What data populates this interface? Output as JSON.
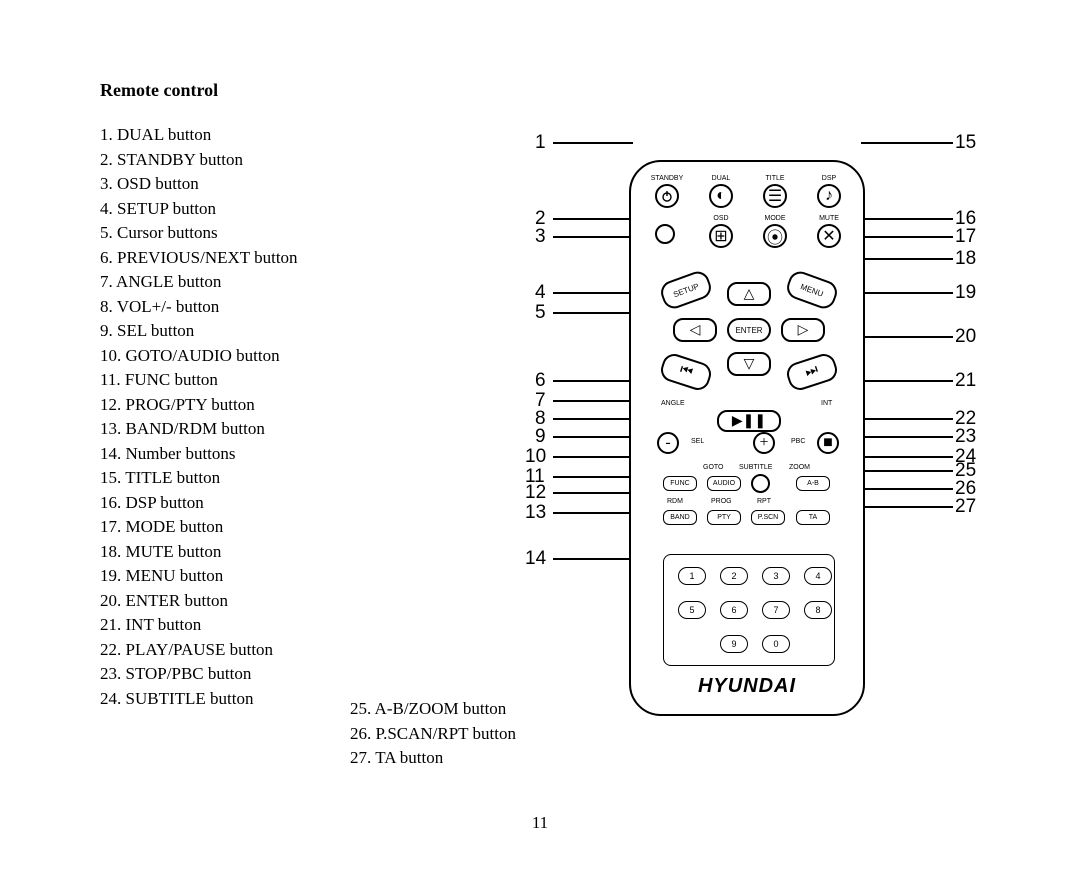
{
  "title": "Remote control",
  "page_number": "11",
  "list_col1": [
    "1.   DUAL button",
    "2.   STANDBY button",
    "3.   OSD button",
    "4.   SETUP button",
    "5.   Cursor buttons",
    "6.   PREVIOUS/NEXT button",
    "7.   ANGLE button",
    "8.   VOL+/- button",
    "9.   SEL button",
    "10. GOTO/AUDIO button",
    "11. FUNC button",
    "12. PROG/PTY button",
    "13. BAND/RDM button",
    "14. Number buttons",
    "15. TITLE button",
    "16. DSP button",
    "17. MODE button",
    "18. MUTE button",
    "19. MENU button",
    "20. ENTER button",
    "21. INT button",
    "22. PLAY/PAUSE button",
    "23. STOP/PBC button",
    "24. SUBTITLE button"
  ],
  "list_col2": [
    "25. A-B/ZOOM button",
    "26. P.SCAN/RPT button",
    "27. TA button"
  ],
  "brand": "HYUNDAI",
  "callouts_left": [
    "1",
    "2",
    "3",
    "4",
    "5",
    "6",
    "7",
    "8",
    "9",
    "10",
    "11",
    "12",
    "13",
    "14"
  ],
  "callouts_right": [
    "15",
    "16",
    "17",
    "18",
    "19",
    "20",
    "21",
    "22",
    "23",
    "24",
    "25",
    "26",
    "27"
  ],
  "remote_labels": {
    "row1": [
      "STANDBY",
      "DUAL",
      "TITLE",
      "DSP"
    ],
    "row2": [
      "OSD",
      "MODE",
      "MUTE"
    ],
    "setup": "SETUP",
    "menu": "MENU",
    "enter": "ENTER",
    "angle": "ANGLE",
    "int": "INT",
    "sel": "SEL",
    "vol_plus": "+",
    "vol_minus": "-",
    "pbc": "PBC",
    "goto": "GOTO",
    "subtitle": "SUBTITLE",
    "zoom": "ZOOM",
    "func": "FUNC",
    "audio": "AUDIO",
    "ab": "A-B",
    "rdm": "RDM",
    "prog": "PROG",
    "rpt": "RPT",
    "band": "BAND",
    "pty": "PTY",
    "pscan": "P.SCN",
    "ta": "TA"
  },
  "keypad": [
    "1",
    "2",
    "3",
    "4",
    "5",
    "6",
    "7",
    "8",
    "9",
    "0"
  ]
}
